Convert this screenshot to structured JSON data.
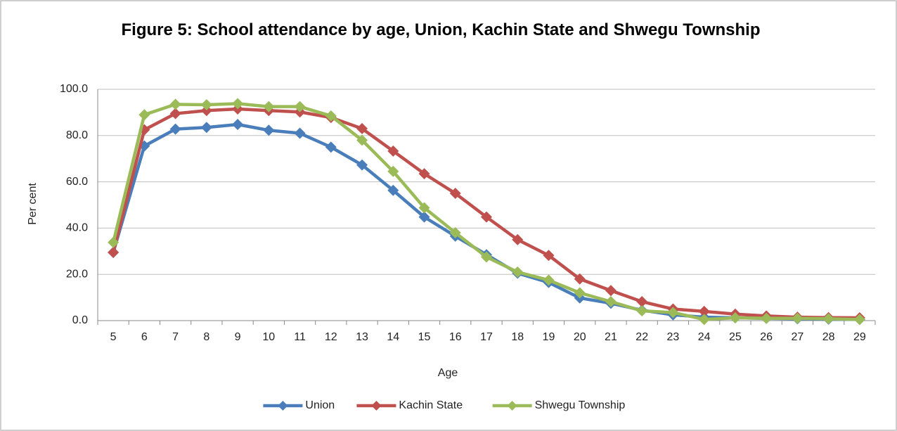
{
  "chart_data": {
    "type": "line",
    "title": "Figure 5:  School attendance by age, Union, Kachin State and Shwegu Township",
    "xlabel": "Age",
    "ylabel": "Per cent",
    "categories": [
      "5",
      "6",
      "7",
      "8",
      "9",
      "10",
      "11",
      "12",
      "13",
      "14",
      "15",
      "16",
      "17",
      "18",
      "19",
      "20",
      "21",
      "22",
      "23",
      "24",
      "25",
      "26",
      "27",
      "28",
      "29"
    ],
    "series": [
      {
        "name": "Union",
        "color": "#4a7ebb",
        "values": [
          29.5,
          75.5,
          82.8,
          83.5,
          84.8,
          82.3,
          81,
          75,
          67.3,
          56.3,
          44.8,
          36.5,
          28.5,
          20.5,
          16.5,
          9.8,
          7.5,
          4.5,
          2.5,
          1.5,
          1.2,
          1,
          0.8,
          0.6,
          0.5
        ]
      },
      {
        "name": "Kachin State",
        "color": "#c0504d",
        "values": [
          29.5,
          82.5,
          89.5,
          90.8,
          91.5,
          90.8,
          90.2,
          87.8,
          83,
          73.3,
          63.5,
          55,
          44.8,
          35,
          28.2,
          18,
          13,
          8.2,
          5,
          4,
          2.8,
          2,
          1.5,
          1.3,
          1.2
        ]
      },
      {
        "name": "Shwegu Township",
        "color": "#9bbb59",
        "values": [
          33.8,
          89,
          93.5,
          93.3,
          93.8,
          92.5,
          92.5,
          88.5,
          78,
          64.5,
          48.8,
          38,
          27.5,
          21,
          17.5,
          12,
          8.2,
          4.2,
          3.5,
          0.5,
          1.2,
          1,
          1,
          0.8,
          0.5
        ]
      }
    ],
    "ylim": [
      0,
      100
    ],
    "yticks": [
      {
        "value": 0,
        "label": "0.0"
      },
      {
        "value": 20,
        "label": "20.0"
      },
      {
        "value": 40,
        "label": "40.0"
      },
      {
        "value": 60,
        "label": "60.0"
      },
      {
        "value": 80,
        "label": "80.0"
      },
      {
        "value": 100,
        "label": "100.0"
      }
    ],
    "grid": true,
    "legend": "bottom"
  }
}
